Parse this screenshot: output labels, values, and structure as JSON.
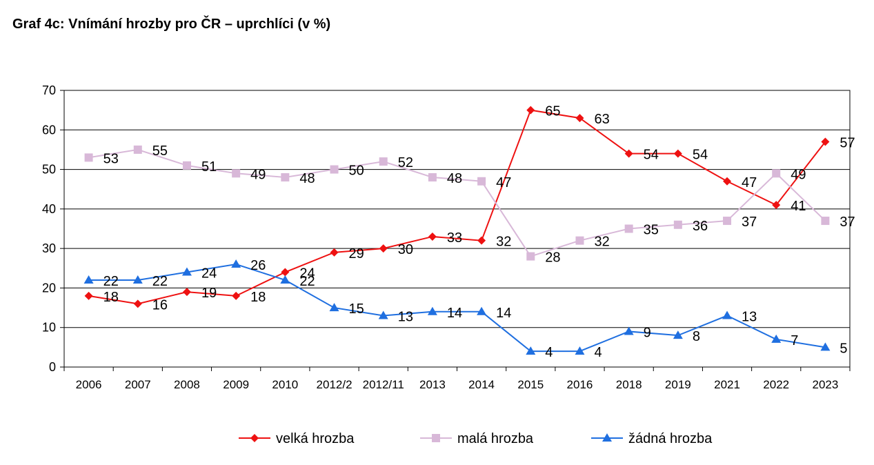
{
  "title": "Graf 4c: Vnímání hrozby pro ČR – uprchlíci (v %)",
  "chart_data": {
    "type": "line",
    "categories": [
      "2006",
      "2007",
      "2008",
      "2009",
      "2010",
      "2012/2",
      "2012/11",
      "2013",
      "2014",
      "2015",
      "2016",
      "2018",
      "2019",
      "2021",
      "2022",
      "2023"
    ],
    "yticks": [
      "0",
      "10",
      "20",
      "30",
      "40",
      "50",
      "60",
      "70"
    ],
    "ylim": [
      0,
      70
    ],
    "grid": true,
    "legend_position": "bottom",
    "series": [
      {
        "name": "velká hrozba",
        "color": "#ee1111",
        "marker": "diamond",
        "values": [
          18,
          16,
          19,
          18,
          24,
          29,
          30,
          33,
          32,
          65,
          63,
          54,
          54,
          47,
          41,
          57
        ],
        "labels": [
          "18",
          "16",
          "19",
          "18",
          "24",
          "29",
          "30",
          "33",
          "32",
          "65",
          "63",
          "54",
          "54",
          "47",
          "41",
          "57"
        ]
      },
      {
        "name": "malá hrozba",
        "color": "#d8b8d8",
        "marker": "square",
        "values": [
          53,
          55,
          51,
          49,
          48,
          50,
          52,
          48,
          47,
          28,
          32,
          35,
          36,
          37,
          49,
          37
        ],
        "labels": [
          "53",
          "55",
          "51",
          "49",
          "48",
          "50",
          "52",
          "48",
          "47",
          "28",
          "32",
          "35",
          "36",
          "37",
          "49",
          "37"
        ]
      },
      {
        "name": "žádná hrozba",
        "color": "#1f6fe0",
        "marker": "triangle",
        "values": [
          22,
          22,
          24,
          26,
          22,
          15,
          13,
          14,
          14,
          4,
          4,
          9,
          8,
          13,
          7,
          5
        ],
        "labels": [
          "22",
          "22",
          "24",
          "26",
          "22",
          "15",
          "13",
          "14",
          "14",
          "4",
          "4",
          "9",
          "8",
          "13",
          "7",
          "5"
        ]
      }
    ]
  }
}
